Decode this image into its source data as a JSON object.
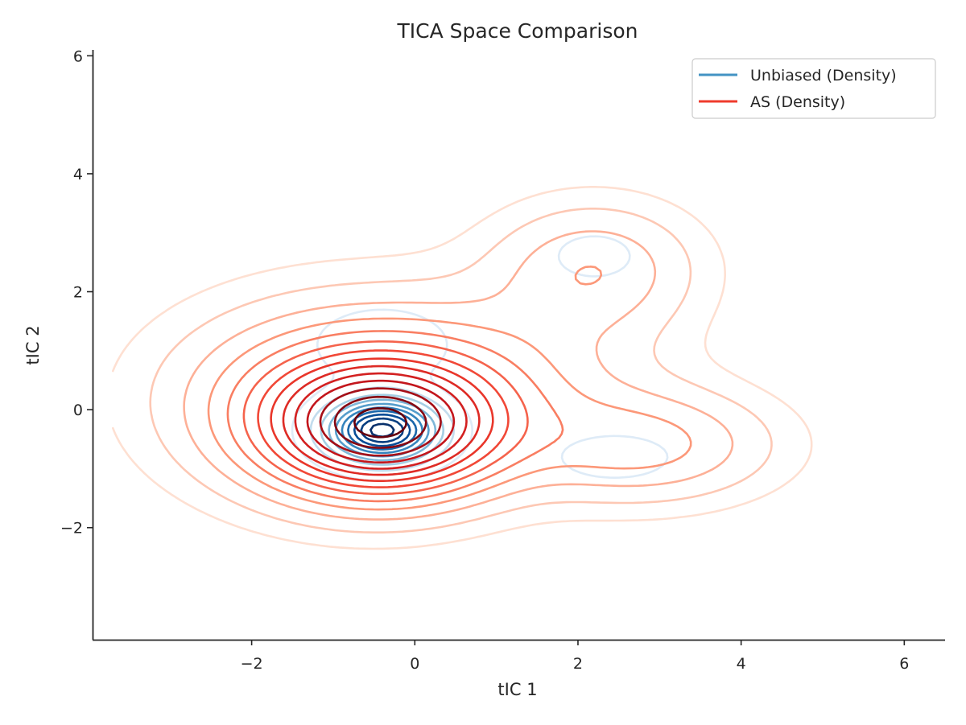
{
  "chart_data": {
    "type": "contour",
    "title": "TICA Space Comparison",
    "xlabel": "tIC 1",
    "ylabel": "tIC 2",
    "xlim": [
      -3.95,
      6.5
    ],
    "ylim": [
      -3.9,
      6.1
    ],
    "xticks": [
      -2,
      0,
      2,
      4,
      6
    ],
    "yticks": [
      -2,
      0,
      2,
      4,
      6
    ],
    "xtick_labels": [
      "−2",
      "0",
      "2",
      "4",
      "6"
    ],
    "ytick_labels": [
      "−2",
      "0",
      "2",
      "4",
      "6"
    ],
    "grid": false,
    "legend_position": "top-right",
    "series": [
      {
        "name": "Unbiased (Density)",
        "color": "#4393c3",
        "colormap": "Blues",
        "components": [
          {
            "x": -0.4,
            "y": -0.35,
            "sx": 0.45,
            "sy": 0.35,
            "weight": 1.0
          },
          {
            "x": -0.4,
            "y": 1.1,
            "sx": 0.6,
            "sy": 0.45,
            "weight": 0.12
          },
          {
            "x": 2.2,
            "y": 2.6,
            "sx": 0.45,
            "sy": 0.35,
            "weight": 0.08
          },
          {
            "x": 2.45,
            "y": -0.8,
            "sx": 0.55,
            "sy": 0.3,
            "weight": 0.1
          }
        ],
        "levels": 10
      },
      {
        "name": "AS (Density)",
        "color": "#ef3b2c",
        "colormap": "Reds",
        "components": [
          {
            "x": -0.4,
            "y": -0.3,
            "sx": 0.9,
            "sy": 0.7,
            "weight": 1.0
          },
          {
            "x": -0.8,
            "y": 0.2,
            "sx": 1.3,
            "sy": 1.0,
            "weight": 0.35
          },
          {
            "x": 2.2,
            "y": 2.4,
            "sx": 0.8,
            "sy": 0.7,
            "weight": 0.18
          },
          {
            "x": 2.8,
            "y": -0.6,
            "sx": 1.0,
            "sy": 0.6,
            "weight": 0.22
          },
          {
            "x": 1.2,
            "y": 0.6,
            "sx": 1.2,
            "sy": 1.0,
            "weight": 0.12
          }
        ],
        "levels": 14
      }
    ]
  }
}
